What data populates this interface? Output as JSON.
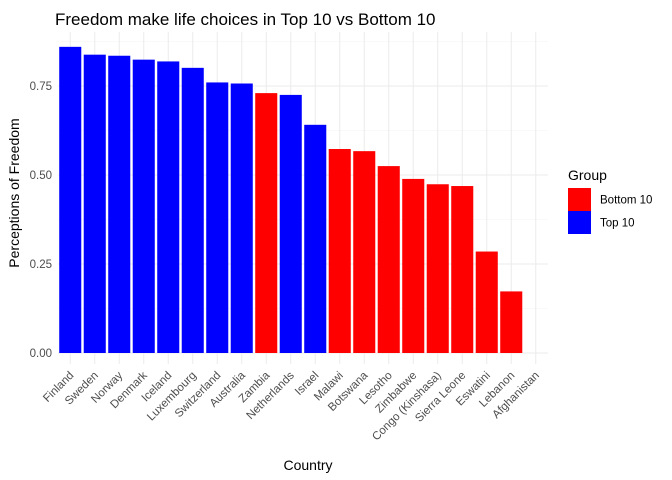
{
  "chart_data": {
    "type": "bar",
    "title": "Freedom make life choices in Top 10 vs Bottom 10",
    "xlabel": "Country",
    "ylabel": "Perceptions of Freedom",
    "ylim": [
      0,
      0.9
    ],
    "yticks": [
      0.0,
      0.25,
      0.5,
      0.75
    ],
    "ytick_labels": [
      "0.00",
      "0.25",
      "0.50",
      "0.75"
    ],
    "grid": true,
    "legend": {
      "title": "Group",
      "placement": "right",
      "entries": [
        {
          "label": "Bottom 10",
          "color": "#ff0000"
        },
        {
          "label": "Top 10",
          "color": "#0000ff"
        }
      ]
    },
    "bars": [
      {
        "category": "Finland",
        "value": 0.86,
        "group": "Top 10"
      },
      {
        "category": "Sweden",
        "value": 0.838,
        "group": "Top 10"
      },
      {
        "category": "Norway",
        "value": 0.835,
        "group": "Top 10"
      },
      {
        "category": "Denmark",
        "value": 0.824,
        "group": "Top 10"
      },
      {
        "category": "Iceland",
        "value": 0.819,
        "group": "Top 10"
      },
      {
        "category": "Luxembourg",
        "value": 0.801,
        "group": "Top 10"
      },
      {
        "category": "Switzerland",
        "value": 0.76,
        "group": "Top 10"
      },
      {
        "category": "Australia",
        "value": 0.757,
        "group": "Top 10"
      },
      {
        "category": "Zambia",
        "value": 0.73,
        "group": "Bottom 10"
      },
      {
        "category": "Netherlands",
        "value": 0.725,
        "group": "Top 10"
      },
      {
        "category": "Israel",
        "value": 0.641,
        "group": "Top 10"
      },
      {
        "category": "Malawi",
        "value": 0.573,
        "group": "Bottom 10"
      },
      {
        "category": "Botswana",
        "value": 0.567,
        "group": "Bottom 10"
      },
      {
        "category": "Lesotho",
        "value": 0.525,
        "group": "Bottom 10"
      },
      {
        "category": "Zimbabwe",
        "value": 0.489,
        "group": "Bottom 10"
      },
      {
        "category": "Congo (Kinshasa)",
        "value": 0.474,
        "group": "Bottom 10"
      },
      {
        "category": "Sierra Leone",
        "value": 0.469,
        "group": "Bottom 10"
      },
      {
        "category": "Eswatini",
        "value": 0.285,
        "group": "Bottom 10"
      },
      {
        "category": "Lebanon",
        "value": 0.173,
        "group": "Bottom 10"
      },
      {
        "category": "Afghanistan",
        "value": 0.0,
        "group": "Bottom 10"
      }
    ]
  }
}
